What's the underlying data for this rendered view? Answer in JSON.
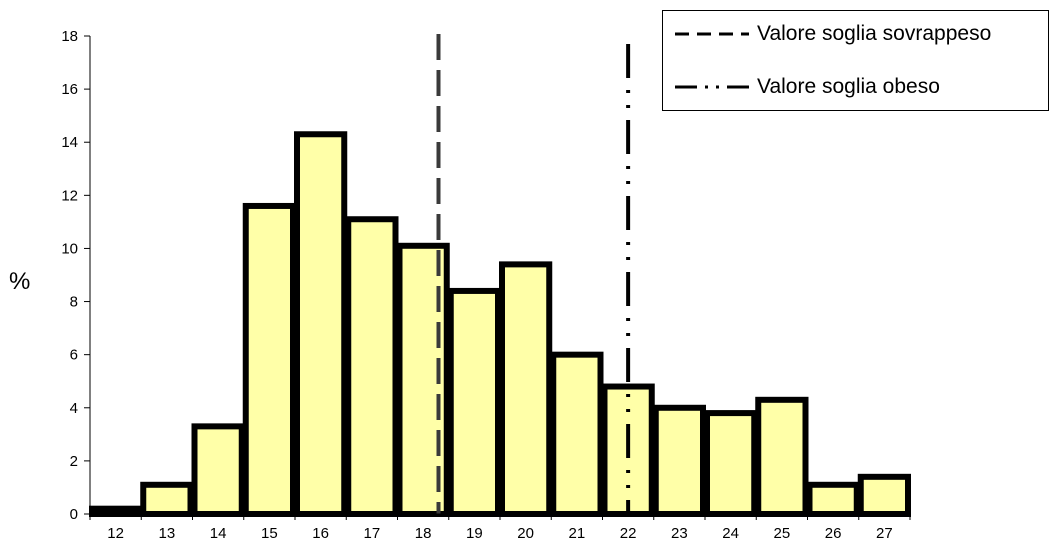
{
  "chart_data": {
    "type": "bar",
    "categories": [
      "12",
      "13",
      "14",
      "15",
      "16",
      "17",
      "18",
      "19",
      "20",
      "21",
      "22",
      "23",
      "24",
      "25",
      "26",
      "27"
    ],
    "values": [
      0.2,
      1.1,
      3.3,
      11.6,
      14.3,
      11.1,
      10.1,
      8.4,
      9.4,
      6.0,
      4.8,
      4.0,
      3.8,
      4.3,
      1.1,
      1.4
    ],
    "xlabel": "",
    "ylabel": "%",
    "ylim": [
      0,
      18
    ],
    "yticks": [
      "0",
      "2",
      "4",
      "6",
      "8",
      "10",
      "12",
      "14",
      "16",
      "18"
    ],
    "bar_color": "#ffffa8",
    "bar_edge_color": "#000000",
    "grid": false,
    "thresholds": [
      {
        "name": "Valore soglia sovrappeso",
        "x": 18.3,
        "style": "dashed",
        "color": "#3a3a3a"
      },
      {
        "name": "Valore soglia obeso",
        "x": 22.0,
        "style": "dash-dot-dot",
        "color": "#000000"
      }
    ],
    "legend_position": "top-right"
  }
}
